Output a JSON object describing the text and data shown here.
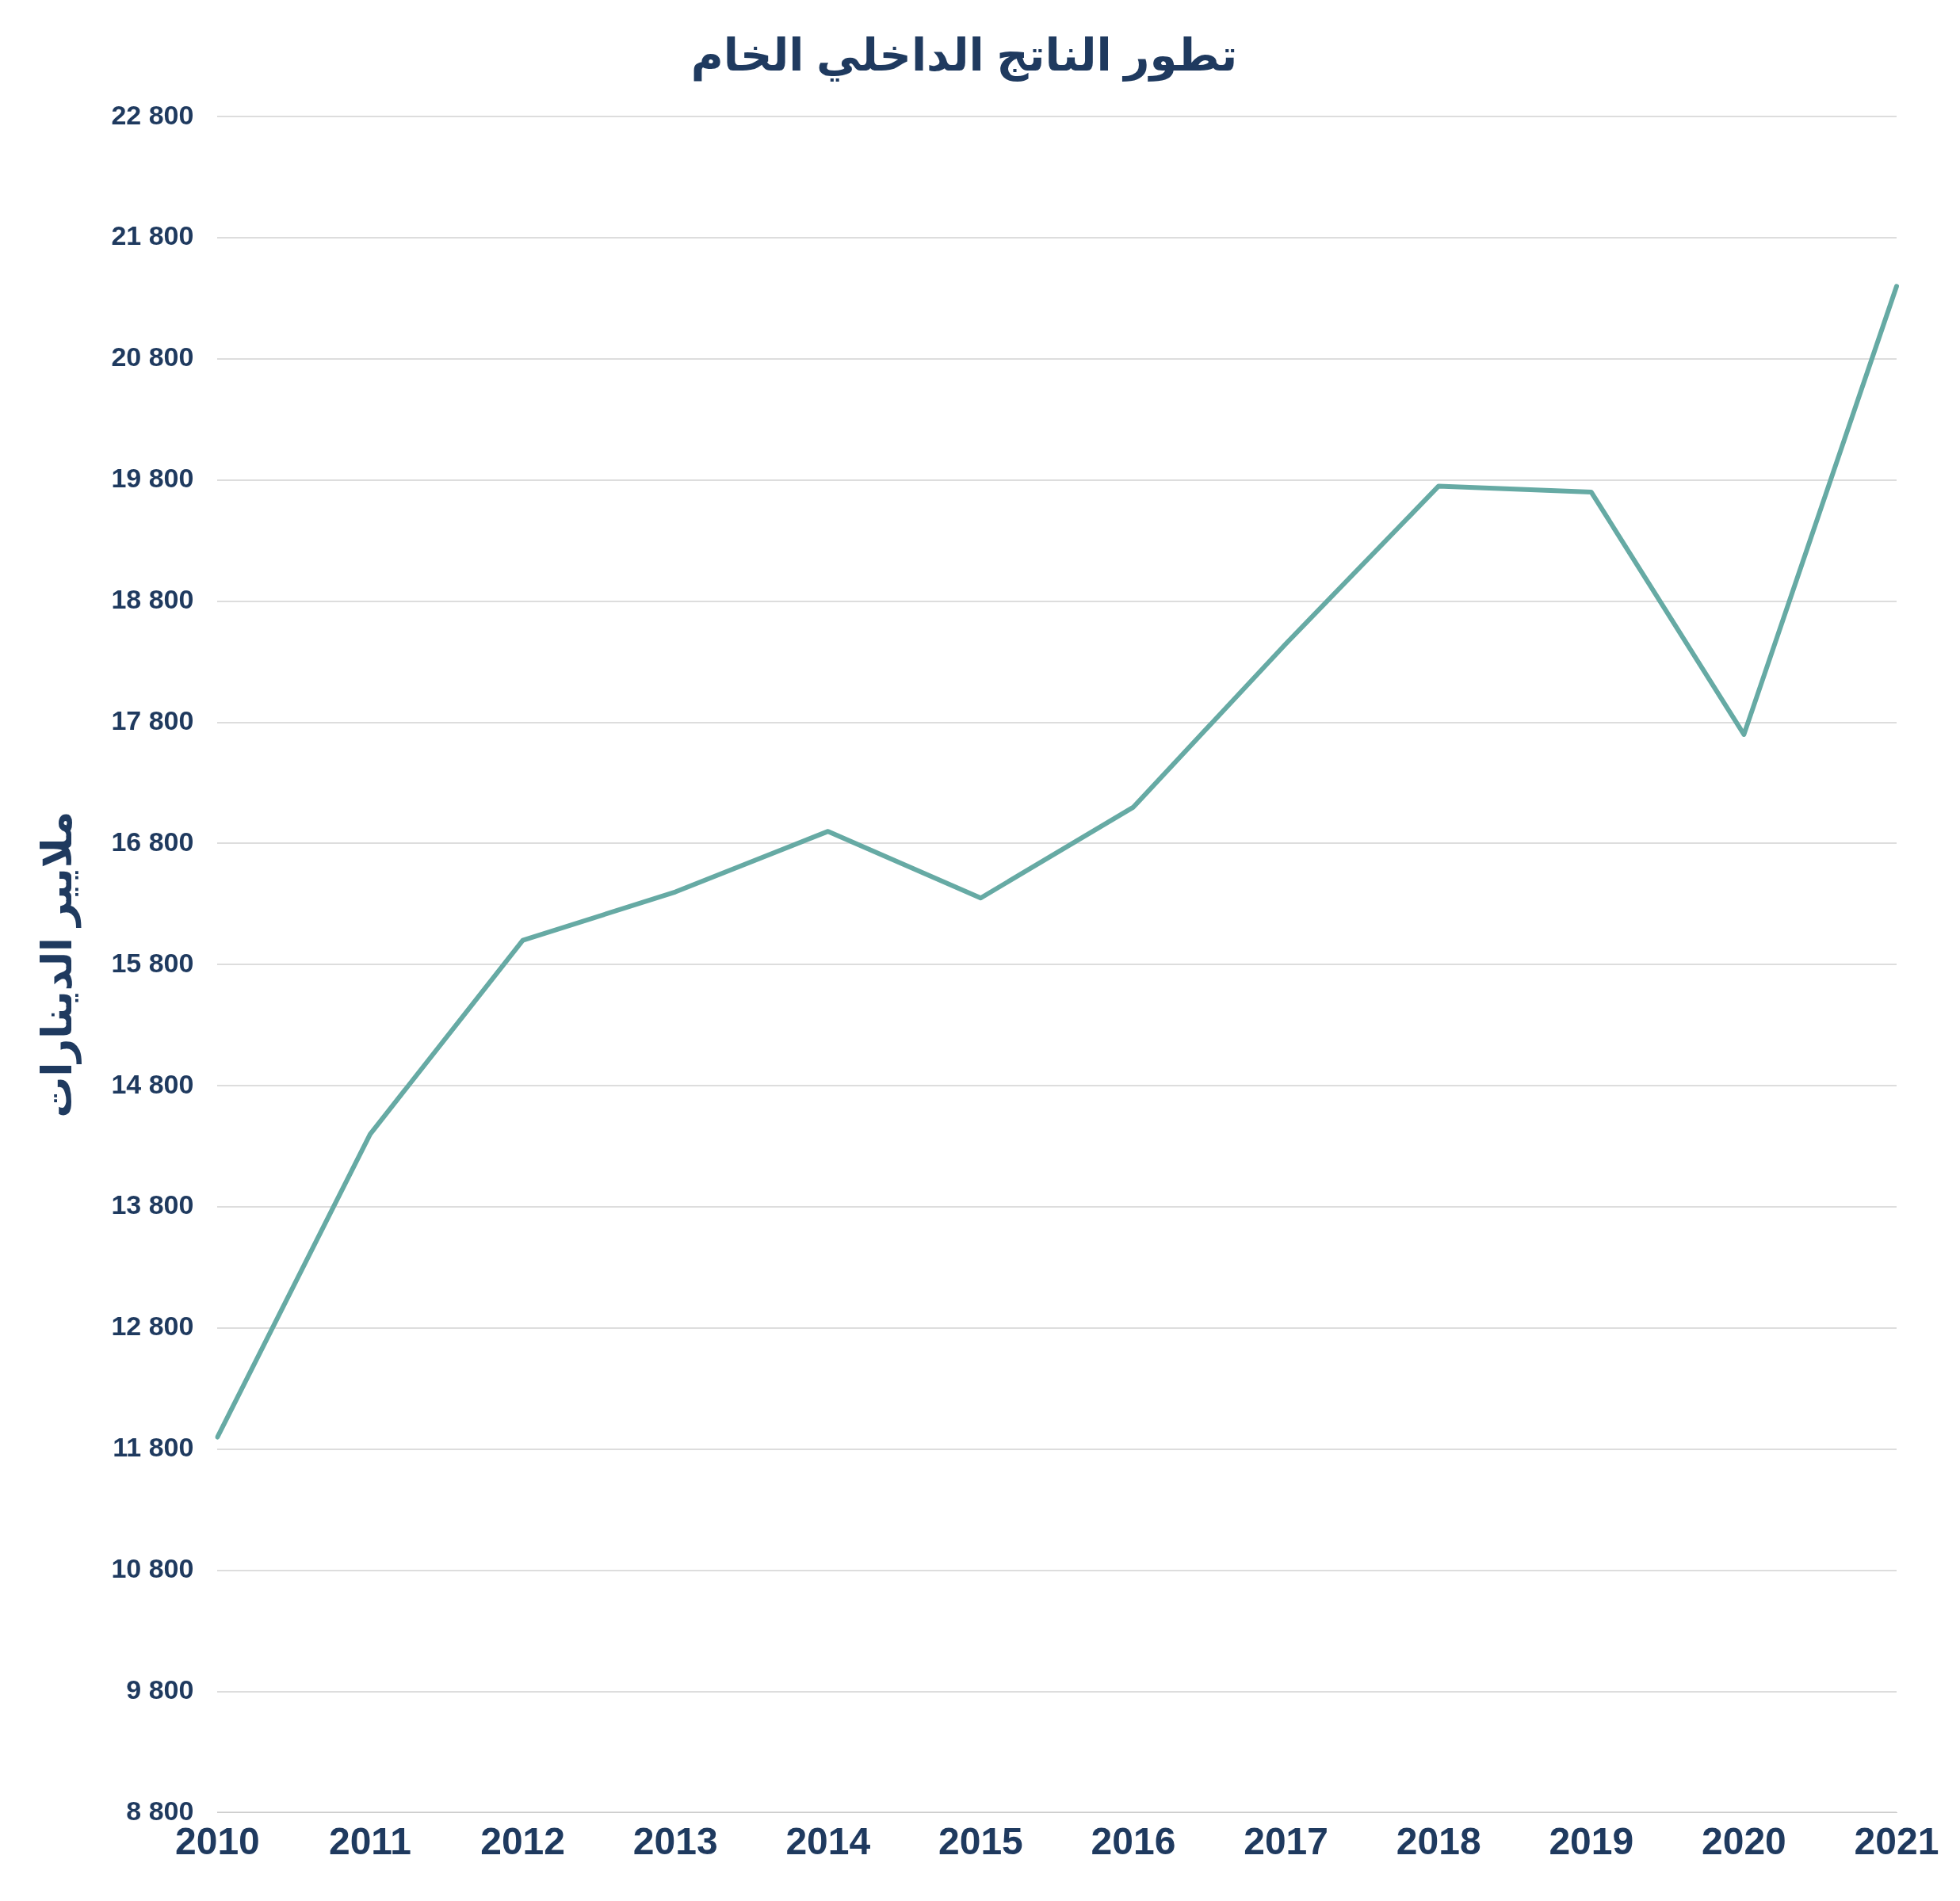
{
  "chart_data": {
    "type": "line",
    "title": "تطور الناتج الداخلي الخام",
    "ylabel": "ملايير الدينارات",
    "categories": [
      "2010",
      "2011",
      "2012",
      "2013",
      "2014",
      "2015",
      "2016",
      "2017",
      "2018",
      "2019",
      "2020",
      "2021"
    ],
    "series": [
      {
        "color": "#66aaa4",
        "values": [
          11900,
          14400,
          16000,
          16400,
          16900,
          16350,
          17100,
          18450,
          19750,
          19700,
          17700,
          21400
        ]
      }
    ],
    "ylim": [
      8800,
      22800
    ],
    "yticks": [
      {
        "value": 8800,
        "label": "8 800"
      },
      {
        "value": 9800,
        "label": "9 800"
      },
      {
        "value": 10800,
        "label": "10 800"
      },
      {
        "value": 11800,
        "label": "11 800"
      },
      {
        "value": 12800,
        "label": "12 800"
      },
      {
        "value": 13800,
        "label": "13 800"
      },
      {
        "value": 14800,
        "label": "14 800"
      },
      {
        "value": 15800,
        "label": "15 800"
      },
      {
        "value": 16800,
        "label": "16 800"
      },
      {
        "value": 17800,
        "label": "17 800"
      },
      {
        "value": 18800,
        "label": "18 800"
      },
      {
        "value": 19800,
        "label": "19 800"
      },
      {
        "value": 20800,
        "label": "20 800"
      },
      {
        "value": 21800,
        "label": "21 800"
      },
      {
        "value": 22800,
        "label": "22 800"
      }
    ],
    "grid": "y",
    "legend": false,
    "marker": "none",
    "line_style": "solid"
  }
}
